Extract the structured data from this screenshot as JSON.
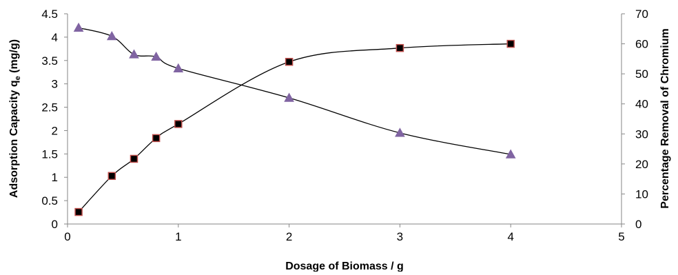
{
  "chart_data": {
    "type": "line",
    "title": "",
    "xlabel": "Dosage  of Biomass  / g",
    "ylabel": "Adsorption Capacity q",
    "ylabel_subscript": "e",
    "ylabel_suffix": " (mg/g)",
    "y2label": "Percentage Removal of Chromium",
    "xlim": [
      0,
      5
    ],
    "ylim": [
      0,
      4.5
    ],
    "y2lim": [
      0,
      70
    ],
    "x_ticks": [
      0,
      1,
      2,
      3,
      4,
      5
    ],
    "y_ticks": [
      0,
      0.5,
      1,
      1.5,
      2,
      2.5,
      3,
      3.5,
      4,
      4.5
    ],
    "y2_ticks": [
      0,
      10,
      20,
      30,
      40,
      50,
      60,
      70
    ],
    "grid": false,
    "legend": "none",
    "series": [
      {
        "axis": "left",
        "marker": "triangle",
        "marker_color": "#8064a2",
        "x": [
          0.1,
          0.4,
          0.6,
          0.8,
          1,
          2,
          3,
          4
        ],
        "values": [
          4.2,
          4.02,
          3.63,
          3.58,
          3.33,
          2.7,
          1.95,
          1.49
        ]
      },
      {
        "axis": "right",
        "marker": "square",
        "marker_color": "#000000",
        "marker_edge": "#c0504d",
        "x": [
          0.1,
          0.4,
          0.6,
          0.8,
          1,
          2,
          3,
          4
        ],
        "values": [
          4,
          16,
          21.7,
          28.6,
          33.3,
          54,
          58.6,
          60
        ]
      }
    ]
  }
}
